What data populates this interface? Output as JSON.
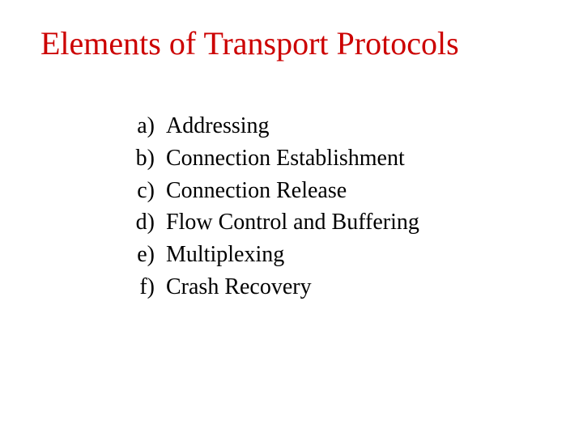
{
  "title": "Elements of Transport Protocols",
  "title_color": "#cc0000",
  "title_fontsize": 40,
  "body_color": "#000000",
  "body_fontsize": 28,
  "background_color": "#ffffff",
  "font_family": "Times New Roman",
  "items": [
    {
      "marker": "a)",
      "text": "Addressing"
    },
    {
      "marker": "b)",
      "text": "Connection Establishment"
    },
    {
      "marker": "c)",
      "text": "Connection Release"
    },
    {
      "marker": "d)",
      "text": "Flow Control and Buffering"
    },
    {
      "marker": "e)",
      "text": "Multiplexing"
    },
    {
      "marker": "f)",
      "text": "Crash Recovery"
    }
  ]
}
